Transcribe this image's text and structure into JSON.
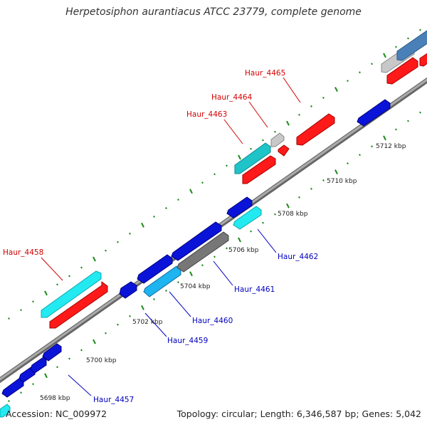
{
  "title": "Herpetosiphon aurantiacus ATCC 23779, complete genome",
  "footer": {
    "accession": "Accession: NC_009972",
    "summary": "Topology: circular; Length: 6,346,587 bp; Genes: 5,042"
  },
  "scale_labels": [
    "5698 kbp",
    "5700 kbp",
    "5702 kbp",
    "5704 kbp",
    "5706 kbp",
    "5708 kbp",
    "5710 kbp",
    "5712 kbp"
  ],
  "gene_labels": {
    "Haur_4457": "Haur_4457",
    "Haur_4458": "Haur_4458",
    "Haur_4459": "Haur_4459",
    "Haur_4460": "Haur_4460",
    "Haur_4461": "Haur_4461",
    "Haur_4462": "Haur_4462",
    "Haur_4463": "Haur_4463",
    "Haur_4464": "Haur_4464",
    "Haur_4465": "Haur_4465"
  },
  "colors": {
    "red": "#ff1a1a",
    "cyan": "#22eaf0",
    "teal": "#1ec4c8",
    "light_blue": "#1eb4f0",
    "blue": "#0a14d8",
    "grey": "#777777",
    "silver": "#c8c8c8",
    "steel": "#4a80b8",
    "label_red": "#d40000",
    "label_blue": "#0000c0",
    "tick_green": "#1a8a1a",
    "backbone": "#888888"
  }
}
